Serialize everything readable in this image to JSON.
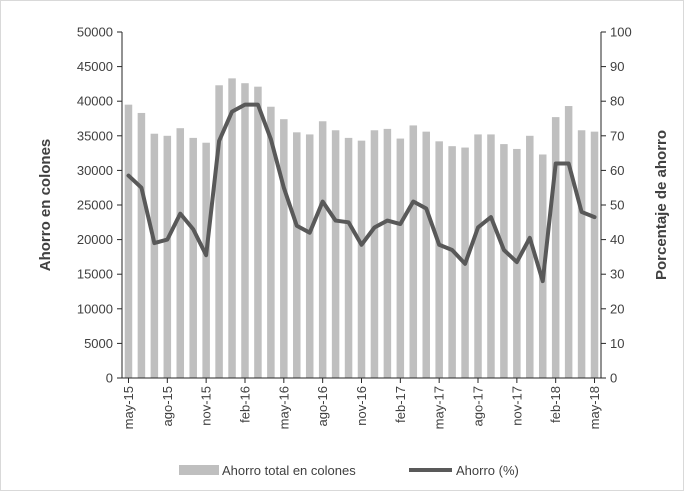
{
  "chart_data": {
    "type": "bar",
    "categories": [
      "may-15",
      "jun-15",
      "jul-15",
      "ago-15",
      "sep-15",
      "oct-15",
      "nov-15",
      "dic-15",
      "ene-16",
      "feb-16",
      "mar-16",
      "abr-16",
      "may-16",
      "jun-16",
      "jul-16",
      "ago-16",
      "sep-16",
      "oct-16",
      "nov-16",
      "dic-16",
      "ene-17",
      "feb-17",
      "mar-17",
      "abr-17",
      "may-17",
      "jun-17",
      "jul-17",
      "ago-17",
      "sep-17",
      "oct-17",
      "nov-17",
      "dic-17",
      "ene-18",
      "feb-18",
      "mar-18",
      "abr-18",
      "may-18"
    ],
    "x_tick_labels": [
      "may-15",
      "ago-15",
      "nov-15",
      "feb-16",
      "may-16",
      "ago-16",
      "nov-16",
      "feb-17",
      "may-17",
      "ago-17",
      "nov-17",
      "feb-18",
      "may-18"
    ],
    "series": [
      {
        "name": "Ahorro total en colones",
        "type": "bar",
        "axis": "left",
        "color": "#bfbfbf",
        "values": [
          39500,
          38300,
          35300,
          35000,
          36100,
          34700,
          34000,
          42300,
          43300,
          42600,
          42100,
          39200,
          37400,
          35500,
          35200,
          37100,
          35800,
          34700,
          34300,
          35800,
          36000,
          34600,
          36500,
          35600,
          34200,
          33500,
          33300,
          35200,
          35200,
          33800,
          33100,
          35000,
          32300,
          37700,
          39300,
          35800,
          35600
        ]
      },
      {
        "name": "Ahorro (%)",
        "type": "line",
        "axis": "right",
        "color": "#595959",
        "values": [
          58.5,
          55,
          39,
          40,
          47.5,
          43,
          35.5,
          68.5,
          77,
          79,
          79,
          69,
          55,
          44,
          42,
          51,
          45.5,
          45,
          38.5,
          43.5,
          45.5,
          44.5,
          51,
          49,
          38.5,
          37,
          33,
          43.5,
          46.5,
          37,
          33.5,
          40.5,
          28,
          62,
          62,
          48,
          46.5
        ]
      }
    ],
    "ylabel": "Ahorro en colones",
    "y2label": "Porcentaje de ahorro",
    "ylim": [
      0,
      50000
    ],
    "y2lim": [
      0,
      100
    ],
    "yticks": [
      "0",
      "5000",
      "10000",
      "15000",
      "20000",
      "25000",
      "30000",
      "35000",
      "40000",
      "45000",
      "50000"
    ],
    "y2ticks": [
      "0",
      "10",
      "20",
      "30",
      "40",
      "50",
      "60",
      "70",
      "80",
      "90",
      "100"
    ],
    "grid": false,
    "legend_position": "bottom"
  }
}
